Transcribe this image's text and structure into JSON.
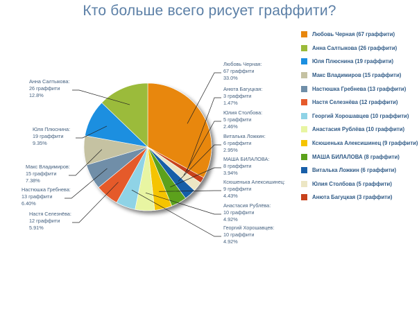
{
  "chart_data": {
    "type": "pie",
    "title": "Кто больше всего рисует граффити?",
    "unit_label": "граффити",
    "slices": [
      {
        "name": "Любовь Черная",
        "value": 67,
        "percent": "33.0%",
        "color": "#e8870e"
      },
      {
        "name": "Анюта Багуцкая",
        "value": 3,
        "percent": "1.47%",
        "color": "#c8421c"
      },
      {
        "name": "Юлия Столбова",
        "value": 5,
        "percent": "2.46%",
        "color": "#ece6c4"
      },
      {
        "name": "Виталька Ложкин",
        "value": 6,
        "percent": "2.95%",
        "color": "#195fa8"
      },
      {
        "name": "МАША БИЛАЛОВА",
        "value": 8,
        "percent": "3.94%",
        "color": "#5ba11a"
      },
      {
        "name": "Ксюшенька Алексишинец",
        "value": 9,
        "percent": "4.43%",
        "color": "#f5c400"
      },
      {
        "name": "Анастасия Рублёва",
        "value": 10,
        "percent": "4.92%",
        "color": "#e8f5a2"
      },
      {
        "name": "Георгий Хорошавцев",
        "value": 10,
        "percent": "4.92%",
        "color": "#8fd3e6"
      },
      {
        "name": "Настя Селезнёва",
        "value": 12,
        "percent": "5.91%",
        "color": "#e55a2b"
      },
      {
        "name": "Настюшка Гребнева",
        "value": 13,
        "percent": "6.40%",
        "color": "#6f8ea8"
      },
      {
        "name": "Макс Владимиров",
        "value": 15,
        "percent": "7.38%",
        "color": "#c5c2a2"
      },
      {
        "name": "Юля Плюснина",
        "value": 19,
        "percent": "9.35%",
        "color": "#1b8fe0"
      },
      {
        "name": "Анна Салтыкова",
        "value": 26,
        "percent": "12.8%",
        "color": "#9bbb3a"
      }
    ],
    "legend": {
      "placement": "right",
      "items": [
        {
          "label": "Любовь Черная (67 граффити)",
          "color": "#e8870e"
        },
        {
          "label": "Анна Салтыкова (26 граффити)",
          "color": "#9bbb3a"
        },
        {
          "label": "Юля Плюснина (19 граффити)",
          "color": "#1b8fe0"
        },
        {
          "label": "Макс Владимиров (15 граффити)",
          "color": "#c5c2a2"
        },
        {
          "label": "Настюшка Гребнева (13 граффити)",
          "color": "#6f8ea8"
        },
        {
          "label": "Настя Селезнёва (12 граффити)",
          "color": "#e55a2b"
        },
        {
          "label": "Георгий Хорошавцев (10 граффити)",
          "color": "#8fd3e6"
        },
        {
          "label": "Анастасия Рублёва (10 граффити)",
          "color": "#e8f5a2"
        },
        {
          "label": "Ксюшенька Алексишинец (9 граффити)",
          "color": "#f5c400"
        },
        {
          "label": "МАША БИЛАЛОВА (8 граффити)",
          "color": "#5ba11a"
        },
        {
          "label": "Виталька Ложкин (6 граффити)",
          "color": "#195fa8"
        },
        {
          "label": "Юлия Столбова (5 граффити)",
          "color": "#ece6c4"
        },
        {
          "label": "Анюта Багуцкая (3 граффити)",
          "color": "#c8421c"
        }
      ]
    },
    "grid": false
  }
}
